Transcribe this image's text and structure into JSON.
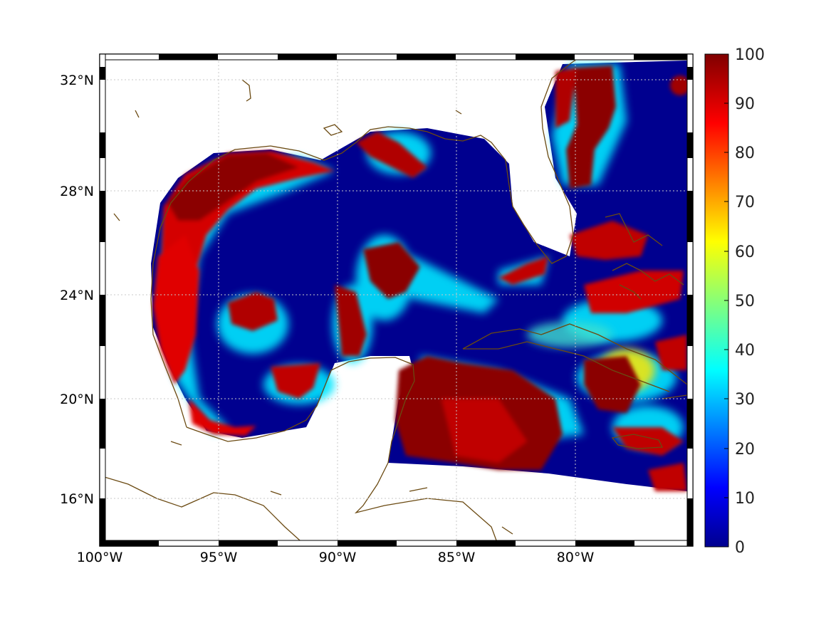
{
  "map": {
    "lon_labels": [
      "100°W",
      "95°W",
      "90°W",
      "85°W",
      "80°W"
    ],
    "lat_labels": [
      "32°N",
      "28°N",
      "24°N",
      "20°N",
      "16°N"
    ]
  },
  "colorbar": {
    "ticks": [
      "100",
      "90",
      "80",
      "70",
      "60",
      "50",
      "40",
      "30",
      "20",
      "10",
      "0"
    ],
    "colormap": [
      "#00008f",
      "#0000ff",
      "#00ffff",
      "#ffff00",
      "#ff0000",
      "#800000"
    ]
  },
  "colors": {
    "coastline": "#6b4a12",
    "low": "#00008f",
    "high": "#8b0000"
  }
}
